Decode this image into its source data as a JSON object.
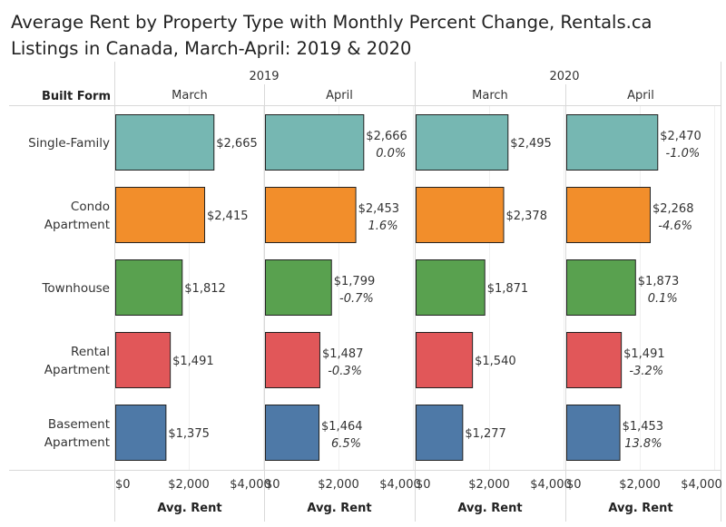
{
  "title": "Average Rent by Property Type with Monthly Percent Change, Rentals.ca Listings in Canada, March-April: 2019 & 2020",
  "row_header": "Built Form",
  "chart_data": {
    "type": "bar",
    "orientation": "horizontal",
    "title": "Average Rent by Property Type with Monthly Percent Change, Rentals.ca Listings in Canada, March-April: 2019 & 2020",
    "xlabel": "Avg. Rent",
    "xlim": [
      0,
      4000
    ],
    "x_ticks": [
      "$0",
      "$2,000",
      "$4,000"
    ],
    "years": [
      "2019",
      "2020"
    ],
    "months": [
      "March",
      "April"
    ],
    "categories": [
      "Single-Family",
      "Condo Apartment",
      "Townhouse",
      "Rental Apartment",
      "Basement Apartment"
    ],
    "category_lines": [
      [
        "Single-Family"
      ],
      [
        "Condo",
        "Apartment"
      ],
      [
        "Townhouse"
      ],
      [
        "Rental",
        "Apartment"
      ],
      [
        "Basement",
        "Apartment"
      ]
    ],
    "colors": [
      "#76b7b2",
      "#f28e2b",
      "#59a14f",
      "#e15759",
      "#4e79a7"
    ],
    "panels": [
      {
        "year": "2019",
        "month": "March",
        "values": [
          2665,
          2415,
          1812,
          1491,
          1375
        ],
        "labels": [
          "$2,665",
          "$2,415",
          "$1,812",
          "$1,491",
          "$1,375"
        ],
        "pct": [
          "",
          "",
          "",
          "",
          ""
        ]
      },
      {
        "year": "2019",
        "month": "April",
        "values": [
          2666,
          2453,
          1799,
          1487,
          1464
        ],
        "labels": [
          "$2,666",
          "$2,453",
          "$1,799",
          "$1,487",
          "$1,464"
        ],
        "pct": [
          "0.0%",
          "1.6%",
          "-0.7%",
          "-0.3%",
          "6.5%"
        ]
      },
      {
        "year": "2020",
        "month": "March",
        "values": [
          2495,
          2378,
          1871,
          1540,
          1277
        ],
        "labels": [
          "$2,495",
          "$2,378",
          "$1,871",
          "$1,540",
          "$1,277"
        ],
        "pct": [
          "",
          "",
          "",
          "",
          ""
        ]
      },
      {
        "year": "2020",
        "month": "April",
        "values": [
          2470,
          2268,
          1873,
          1491,
          1453
        ],
        "labels": [
          "$2,470",
          "$2,268",
          "$1,873",
          "$1,491",
          "$1,453"
        ],
        "pct": [
          "-1.0%",
          "-4.6%",
          "0.1%",
          "-3.2%",
          "13.8%"
        ]
      }
    ],
    "grid": true,
    "legend": "none"
  }
}
